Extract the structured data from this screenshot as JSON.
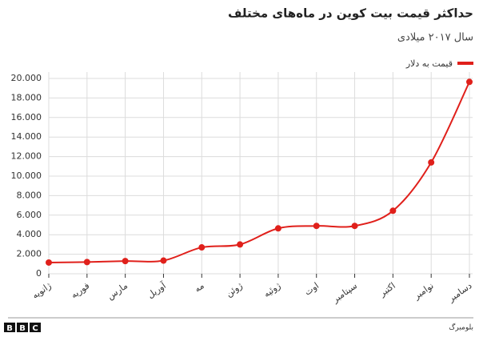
{
  "chart_data": {
    "type": "line",
    "title": "حداکثر قیمت بیت کوین در ماه‌های مختلف",
    "subtitle": "سال ۲۰۱۷ میلادی",
    "categories": [
      "ژانویه",
      "فوریه",
      "مارس",
      "آوریل",
      "مه",
      "ژوئن",
      "ژوئیه",
      "اوت",
      "سپتامبر",
      "اکتبر",
      "نوامبر",
      "دسامبر"
    ],
    "series": [
      {
        "name": "قیمت به دلار",
        "color": "#e0201b",
        "values": [
          1150,
          1200,
          1300,
          1350,
          2700,
          3000,
          4650,
          4900,
          4900,
          6450,
          11400,
          19650
        ]
      }
    ],
    "ylim": [
      0,
      20000
    ],
    "yticks": [
      0,
      {
        "value": 2000,
        "label": "2.000"
      },
      {
        "value": 4000,
        "label": "4.000"
      },
      {
        "value": 6000,
        "label": "6.000"
      },
      {
        "value": 8000,
        "label": "8.000"
      },
      {
        "value": 10000,
        "label": "10.000"
      },
      {
        "value": 12000,
        "label": "12.000"
      },
      {
        "value": 14000,
        "label": "14.000"
      },
      {
        "value": 16000,
        "label": "16.000"
      },
      {
        "value": 18000,
        "label": "18.000"
      },
      {
        "value": 20000,
        "label": "20.000"
      }
    ],
    "grid": true,
    "legend": "top-right",
    "source": "بلومبرگ",
    "logo": "BBC"
  }
}
